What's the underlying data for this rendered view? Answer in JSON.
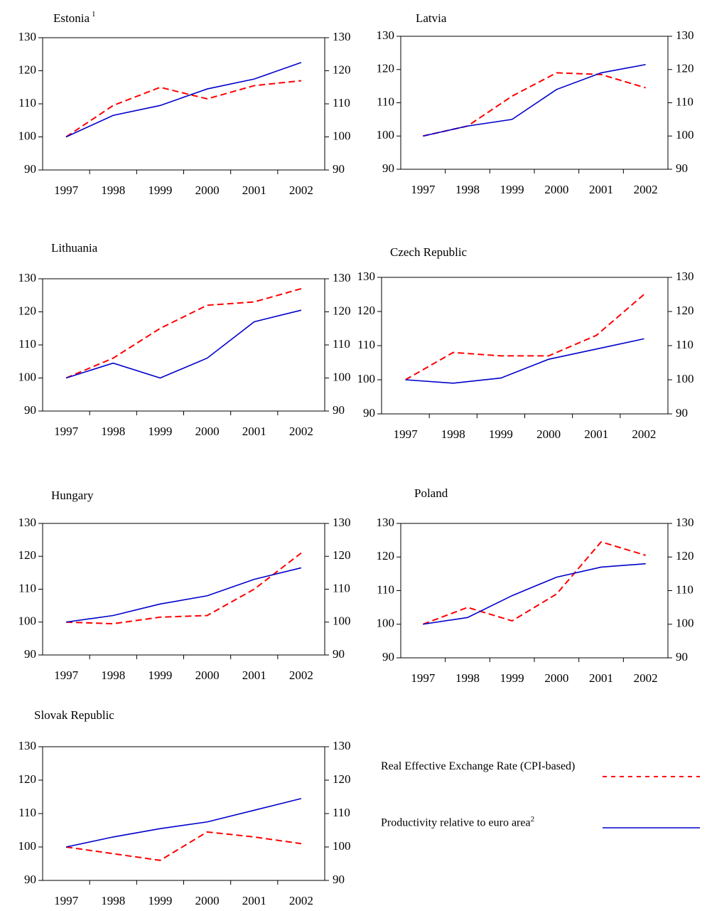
{
  "chart_data": [
    {
      "type": "line",
      "title": "Estonia",
      "title_note": "1",
      "categories": [
        "1997",
        "1998",
        "1999",
        "2000",
        "2001",
        "2002"
      ],
      "series": [
        {
          "color": "#ff0000",
          "dashed": true,
          "values": [
            100,
            109.5,
            115,
            111.5,
            115.5,
            117
          ]
        },
        {
          "color": "#0000cc",
          "dashed": false,
          "values": [
            100,
            106.5,
            109.5,
            114.5,
            117.5,
            122.5
          ]
        }
      ],
      "ylim": [
        90,
        130
      ],
      "yticks": [
        90,
        100,
        110,
        120,
        130
      ],
      "y2lim": [
        90,
        130
      ],
      "y2ticks": [
        90,
        100,
        110,
        120,
        130
      ]
    },
    {
      "type": "line",
      "title": "Latvia",
      "categories": [
        "1997",
        "1998",
        "1999",
        "2000",
        "2001",
        "2002"
      ],
      "series": [
        {
          "color": "#ff0000",
          "dashed": true,
          "values": [
            100,
            103,
            112,
            119,
            118.5,
            114.5
          ]
        },
        {
          "color": "#0000cc",
          "dashed": false,
          "values": [
            100,
            103,
            105,
            114,
            119,
            121.5
          ]
        }
      ],
      "ylim": [
        90,
        130
      ],
      "yticks": [
        90,
        100,
        110,
        120,
        130
      ],
      "y2lim": [
        90,
        130
      ],
      "y2ticks": [
        90,
        100,
        110,
        120,
        130
      ]
    },
    {
      "type": "line",
      "title": "Lithuania",
      "categories": [
        "1997",
        "1998",
        "1999",
        "2000",
        "2001",
        "2002"
      ],
      "series": [
        {
          "color": "#ff0000",
          "dashed": true,
          "values": [
            100,
            106,
            115,
            122,
            123,
            127
          ]
        },
        {
          "color": "#0000cc",
          "dashed": false,
          "values": [
            100,
            104.5,
            100,
            106,
            117,
            120.5
          ]
        }
      ],
      "ylim": [
        90,
        130
      ],
      "yticks": [
        90,
        100,
        110,
        120,
        130
      ],
      "y2lim": [
        90,
        130
      ],
      "y2ticks": [
        90,
        100,
        110,
        120,
        130
      ]
    },
    {
      "type": "line",
      "title": "Czech Republic",
      "categories": [
        "1997",
        "1998",
        "1999",
        "2000",
        "2001",
        "2002"
      ],
      "series": [
        {
          "color": "#ff0000",
          "dashed": true,
          "values": [
            100,
            108,
            107,
            107,
            113,
            125
          ]
        },
        {
          "color": "#0000cc",
          "dashed": false,
          "values": [
            100,
            99,
            100.5,
            106,
            109,
            112
          ]
        }
      ],
      "ylim": [
        90,
        130
      ],
      "yticks": [
        90,
        100,
        110,
        120,
        130
      ],
      "y2lim": [
        90,
        130
      ],
      "y2ticks": [
        90,
        100,
        110,
        120,
        130
      ]
    },
    {
      "type": "line",
      "title": "Hungary",
      "categories": [
        "1997",
        "1998",
        "1999",
        "2000",
        "2001",
        "2002"
      ],
      "series": [
        {
          "color": "#ff0000",
          "dashed": true,
          "values": [
            100,
            99.5,
            101.5,
            102,
            110,
            121
          ]
        },
        {
          "color": "#0000cc",
          "dashed": false,
          "values": [
            100,
            102,
            105.5,
            108,
            113,
            116.5
          ]
        }
      ],
      "ylim": [
        90,
        130
      ],
      "yticks": [
        90,
        100,
        110,
        120,
        130
      ],
      "y2lim": [
        90,
        130
      ],
      "y2ticks": [
        90,
        100,
        110,
        120,
        130
      ]
    },
    {
      "type": "line",
      "title": "Poland",
      "categories": [
        "1997",
        "1998",
        "1999",
        "2000",
        "2001",
        "2002"
      ],
      "series": [
        {
          "color": "#ff0000",
          "dashed": true,
          "values": [
            100,
            105,
            101,
            109,
            124.5,
            120.5
          ]
        },
        {
          "color": "#0000cc",
          "dashed": false,
          "values": [
            100,
            102,
            108.5,
            114,
            117,
            118
          ]
        }
      ],
      "ylim": [
        90,
        130
      ],
      "yticks": [
        90,
        100,
        110,
        120,
        130
      ],
      "y2lim": [
        90,
        130
      ],
      "y2ticks": [
        90,
        100,
        110,
        120,
        130
      ]
    },
    {
      "type": "line",
      "title": "Slovak Republic",
      "categories": [
        "1997",
        "1998",
        "1999",
        "2000",
        "2001",
        "2002"
      ],
      "series": [
        {
          "color": "#ff0000",
          "dashed": true,
          "values": [
            100,
            98,
            96,
            104.5,
            103,
            101
          ]
        },
        {
          "color": "#0000cc",
          "dashed": false,
          "values": [
            100,
            103,
            105.5,
            107.5,
            111,
            114.5
          ]
        }
      ],
      "ylim": [
        90,
        130
      ],
      "yticks": [
        90,
        100,
        110,
        120,
        130
      ],
      "y2lim": [
        90,
        130
      ],
      "y2ticks": [
        90,
        100,
        110,
        120,
        130
      ]
    }
  ],
  "legend": [
    {
      "label": "Real Effective Exchange Rate (CPI-based)",
      "color": "#ff0000",
      "dashed": true
    },
    {
      "label": "Productivity relative to euro area",
      "note": "2",
      "color": "#0000cc",
      "dashed": false
    }
  ]
}
